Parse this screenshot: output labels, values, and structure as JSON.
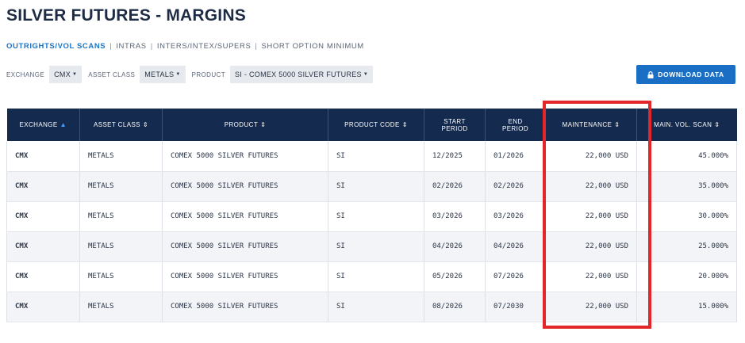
{
  "page": {
    "title": "SILVER FUTURES - MARGINS"
  },
  "subnav": {
    "items": [
      "OUTRIGHTS/VOL SCANS",
      "INTRAS",
      "INTERS/INTEX/SUPERS",
      "SHORT OPTION MINIMUM"
    ],
    "separator": "|",
    "active_index": 0
  },
  "filters": {
    "exchange": {
      "label": "EXCHANGE",
      "value": "CMX"
    },
    "asset_class": {
      "label": "ASSET CLASS",
      "value": "METALS"
    },
    "product": {
      "label": "PRODUCT",
      "value": "SI - COMEX 5000 SILVER FUTURES"
    }
  },
  "download": {
    "label": "DOWNLOAD DATA",
    "icon": "lock-icon"
  },
  "table": {
    "headers": {
      "exchange": "EXCHANGE",
      "asset_class": "ASSET CLASS",
      "product": "PRODUCT",
      "product_code": "PRODUCT CODE",
      "start_period_1": "START",
      "start_period_2": "PERIOD",
      "end_period_1": "END",
      "end_period_2": "PERIOD",
      "maintenance": "MAINTENANCE",
      "main_vol_scan": "MAIN. VOL. SCAN"
    },
    "sort_column": "exchange",
    "rows": [
      {
        "exchange": "CMX",
        "asset_class": "METALS",
        "product": "COMEX 5000 SILVER FUTURES",
        "product_code": "SI",
        "start": "12/2025",
        "end": "01/2026",
        "maintenance": "22,000 USD",
        "vol_scan": "45.000%"
      },
      {
        "exchange": "CMX",
        "asset_class": "METALS",
        "product": "COMEX 5000 SILVER FUTURES",
        "product_code": "SI",
        "start": "02/2026",
        "end": "02/2026",
        "maintenance": "22,000 USD",
        "vol_scan": "35.000%"
      },
      {
        "exchange": "CMX",
        "asset_class": "METALS",
        "product": "COMEX 5000 SILVER FUTURES",
        "product_code": "SI",
        "start": "03/2026",
        "end": "03/2026",
        "maintenance": "22,000 USD",
        "vol_scan": "30.000%"
      },
      {
        "exchange": "CMX",
        "asset_class": "METALS",
        "product": "COMEX 5000 SILVER FUTURES",
        "product_code": "SI",
        "start": "04/2026",
        "end": "04/2026",
        "maintenance": "22,000 USD",
        "vol_scan": "25.000%"
      },
      {
        "exchange": "CMX",
        "asset_class": "METALS",
        "product": "COMEX 5000 SILVER FUTURES",
        "product_code": "SI",
        "start": "05/2026",
        "end": "07/2026",
        "maintenance": "22,000 USD",
        "vol_scan": "20.000%"
      },
      {
        "exchange": "CMX",
        "asset_class": "METALS",
        "product": "COMEX 5000 SILVER FUTURES",
        "product_code": "SI",
        "start": "08/2026",
        "end": "07/2030",
        "maintenance": "22,000 USD",
        "vol_scan": "15.000%"
      }
    ]
  },
  "colors": {
    "header_bg": "#142a4e",
    "accent": "#1a6fc4",
    "active_link": "#1a74c8",
    "highlight": "#e3262a"
  }
}
